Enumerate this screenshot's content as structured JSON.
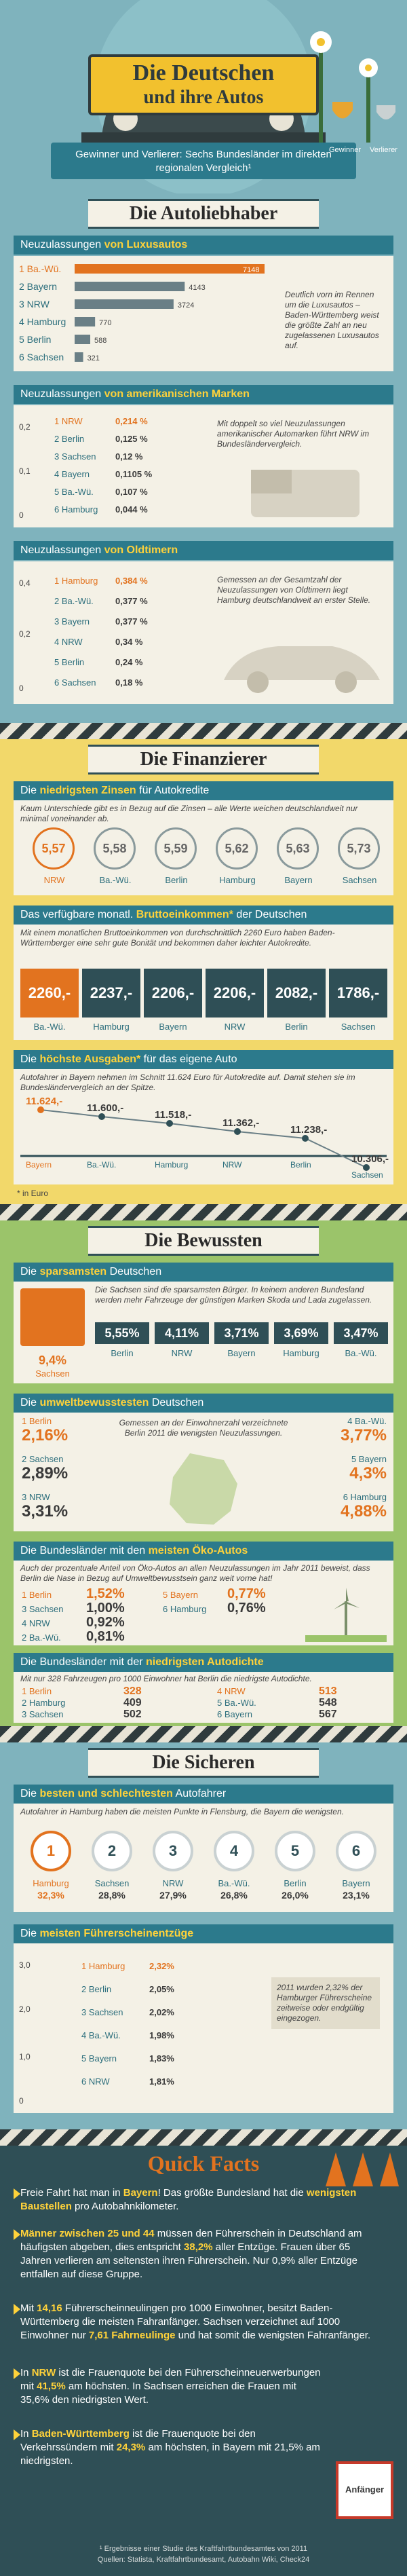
{
  "header": {
    "title1": "Die Deutschen",
    "title2": "und ihre Autos",
    "subtitle": "Gewinner und Verlierer: Sechs Bundesländer im direkten regionalen Vergleich¹",
    "winner": "Gewinner",
    "loser": "Verlierer"
  },
  "s1": {
    "title": "Die Autoliebhaber",
    "lux": {
      "heading_pre": "Neuzulassungen ",
      "heading_bold": "von Luxusautos",
      "note": "Deutlich vorn im Rennen um die Luxusautos – Baden-Württemberg weist die größte Zahl an neu zugelassenen Luxusautos auf.",
      "rows": [
        {
          "label": "1 Ba.-Wü.",
          "value": "7148",
          "v": 7148
        },
        {
          "label": "2 Bayern",
          "value": "4143",
          "v": 4143
        },
        {
          "label": "3 NRW",
          "value": "3724",
          "v": 3724
        },
        {
          "label": "4 Hamburg",
          "value": "770",
          "v": 770
        },
        {
          "label": "5 Berlin",
          "value": "588",
          "v": 588
        },
        {
          "label": "6 Sachsen",
          "value": "321",
          "v": 321
        }
      ]
    },
    "us": {
      "heading_pre": "Neuzulassungen ",
      "heading_bold": "von amerikanischen Marken",
      "note": "Mit doppelt so viel Neuzulassungen amerikanischer Automarken führt NRW im Bundesländervergleich.",
      "axis_top": "0,2",
      "axis_mid": "0,1",
      "axis_bot": "0",
      "rows": [
        {
          "label": "1 NRW",
          "value": "0,214 %"
        },
        {
          "label": "2 Berlin",
          "value": "0,125 %"
        },
        {
          "label": "3 Sachsen",
          "value": "0,12 %"
        },
        {
          "label": "4 Bayern",
          "value": "0,1105 %"
        },
        {
          "label": "5 Ba.-Wü.",
          "value": "0,107 %"
        },
        {
          "label": "6 Hamburg",
          "value": "0,044 %"
        }
      ]
    },
    "old": {
      "heading_pre": "Neuzulassungen ",
      "heading_bold": "von Oldtimern",
      "note": "Gemessen an der Gesamtzahl der Neuzulassungen von Oldtimern liegt Hamburg deutschlandweit an erster Stelle.",
      "axis_top": "0,4",
      "axis_mid": "0,2",
      "axis_bot": "0",
      "rows": [
        {
          "label": "1 Hamburg",
          "value": "0,384 %"
        },
        {
          "label": "2 Ba.-Wü.",
          "value": "0,377 %"
        },
        {
          "label": "3 Bayern",
          "value": "0,377 %"
        },
        {
          "label": "4 NRW",
          "value": "0,34 %"
        },
        {
          "label": "5 Berlin",
          "value": "0,24 %"
        },
        {
          "label": "6 Sachsen",
          "value": "0,18 %"
        }
      ]
    }
  },
  "s2": {
    "title": "Die Finanzierer",
    "zins": {
      "heading_pre": "Die ",
      "heading_bold": "niedrigsten Zinsen",
      "heading_post": " für Autokredite",
      "note": "Kaum Unterschiede gibt es in Bezug auf die Zinsen – alle Werte weichen deutschlandweit nur minimal voneinander ab.",
      "items": [
        {
          "value": "5,57",
          "label": "NRW"
        },
        {
          "value": "5,58",
          "label": "Ba.-Wü."
        },
        {
          "value": "5,59",
          "label": "Berlin"
        },
        {
          "value": "5,62",
          "label": "Hamburg"
        },
        {
          "value": "5,63",
          "label": "Bayern"
        },
        {
          "value": "5,73",
          "label": "Sachsen"
        }
      ]
    },
    "brutto": {
      "heading_pre": "Das verfügbare monatl. ",
      "heading_bold": "Bruttoeinkommen*",
      "heading_post": " der Deutschen",
      "note": "Mit einem monatlichen Bruttoeinkommen von durchschnittlich 2260 Euro haben Baden-Württemberger eine sehr gute Bonität und bekommen daher leichter Autokredite.",
      "items": [
        {
          "value": "2260,-",
          "label": "Ba.-Wü."
        },
        {
          "value": "2237,-",
          "label": "Hamburg"
        },
        {
          "value": "2206,-",
          "label": "Bayern"
        },
        {
          "value": "2206,-",
          "label": "NRW"
        },
        {
          "value": "2082,-",
          "label": "Berlin"
        },
        {
          "value": "1786,-",
          "label": "Sachsen"
        }
      ]
    },
    "ausgaben": {
      "heading_pre": "Die ",
      "heading_bold": "höchste Ausgaben*",
      "heading_post": " für das eigene Auto",
      "note": "Autofahrer in Bayern nehmen im Schnitt 11.624 Euro für Autokredite auf. Damit stehen sie im Bundesländervergleich an der Spitze.",
      "items": [
        {
          "value": "11.624,-",
          "label": "Bayern"
        },
        {
          "value": "11.600,-",
          "label": "Ba.-Wü."
        },
        {
          "value": "11.518,-",
          "label": "Hamburg"
        },
        {
          "value": "11.362,-",
          "label": "NRW"
        },
        {
          "value": "11.238,-",
          "label": "Berlin"
        },
        {
          "value": "10.306,-",
          "label": "Sachsen"
        }
      ]
    },
    "footnote": "* in Euro"
  },
  "s3": {
    "title": "Die Bewussten",
    "spar": {
      "heading_pre": "Die ",
      "heading_bold": "sparsamsten",
      "heading_post": " Deutschen",
      "note": "Die Sachsen sind die sparsamsten Bürger. In keinem anderen Bundesland werden mehr Fahrzeuge der günstigen Marken Skoda und Lada zugelassen.",
      "items": [
        {
          "value": "9,4%",
          "label": "Sachsen"
        },
        {
          "value": "5,55%",
          "label": "Berlin"
        },
        {
          "value": "4,11%",
          "label": "NRW"
        },
        {
          "value": "3,71%",
          "label": "Bayern"
        },
        {
          "value": "3,69%",
          "label": "Hamburg"
        },
        {
          "value": "3,47%",
          "label": "Ba.-Wü."
        }
      ]
    },
    "umwelt": {
      "heading_pre": "Die ",
      "heading_bold": "umweltbewusstesten",
      "heading_post": " Deutschen",
      "note": "Gemessen an der Einwohnerzahl verzeichnete Berlin 2011 die wenigsten Neuzulassungen.",
      "left": [
        {
          "label": "1 Berlin",
          "value": "2,16%"
        },
        {
          "label": "2 Sachsen",
          "value": "2,89%"
        },
        {
          "label": "3 NRW",
          "value": "3,31%"
        }
      ],
      "right": [
        {
          "label": "4 Ba.-Wü.",
          "value": "3,77%"
        },
        {
          "label": "5 Bayern",
          "value": "4,3%"
        },
        {
          "label": "6 Hamburg",
          "value": "4,88%"
        }
      ]
    },
    "oeko": {
      "heading_pre": "Die Bundesländer mit den ",
      "heading_bold": "meisten Öko-Autos",
      "note": "Auch der prozentuale Anteil von Öko-Autos an allen Neuzulassungen im Jahr 2011 beweist, dass Berlin die Nase in Bezug auf Umweltbewusstsein ganz weit vorne hat!",
      "left": [
        {
          "label": "1 Berlin",
          "value": "1,52%"
        },
        {
          "label": "3 Sachsen",
          "value": "1,00%"
        },
        {
          "label": "4 NRW",
          "value": "0,92%"
        },
        {
          "label": "2 Ba.-Wü.",
          "value": "0,81%"
        }
      ],
      "right": [
        {
          "label": "5 Bayern",
          "value": "0,77%"
        },
        {
          "label": "6 Hamburg",
          "value": "0,76%"
        }
      ]
    },
    "dichte": {
      "heading_pre": "Die Bundesländer mit der ",
      "heading_bold": "niedrigsten Autodichte",
      "note": "Mit nur 328 Fahrzeugen pro 1000 Einwohner hat Berlin die niedrigste Autodichte.",
      "left": [
        {
          "label": "1 Berlin",
          "value": "328"
        },
        {
          "label": "2 Hamburg",
          "value": "409"
        },
        {
          "label": "3 Sachsen",
          "value": "502"
        }
      ],
      "right": [
        {
          "label": "4 NRW",
          "value": "513"
        },
        {
          "label": "5 Ba.-Wü.",
          "value": "548"
        },
        {
          "label": "6 Bayern",
          "value": "567"
        }
      ]
    }
  },
  "s4": {
    "title": "Die Sicheren",
    "fahrer": {
      "heading_pre": "Die ",
      "heading_bold": "besten und schlechtesten",
      "heading_post": " Autofahrer",
      "note": "Autofahrer in Hamburg haben die meisten Punkte in Flensburg, die Bayern die wenigsten.",
      "items": [
        {
          "rank": "1",
          "label": "Hamburg",
          "value": "32,3%"
        },
        {
          "rank": "2",
          "label": "Sachsen",
          "value": "28,8%"
        },
        {
          "rank": "3",
          "label": "NRW",
          "value": "27,9%"
        },
        {
          "rank": "4",
          "label": "Ba.-Wü.",
          "value": "26,8%"
        },
        {
          "rank": "5",
          "label": "Berlin",
          "value": "26,0%"
        },
        {
          "rank": "6",
          "label": "Bayern",
          "value": "23,1%"
        }
      ]
    },
    "schein": {
      "heading_pre": "Die ",
      "heading_bold": "meisten Führerscheinentzüge",
      "note": "2011 wurden 2,32% der Hamburger Führerscheine zeitweise oder endgültig eingezogen.",
      "axis_top": "3,0",
      "axis_mid": "2,0",
      "axis_low": "1,0",
      "axis_bot": "0",
      "rows": [
        {
          "label": "1 Hamburg",
          "value": "2,32%"
        },
        {
          "label": "2 Berlin",
          "value": "2,05%"
        },
        {
          "label": "3 Sachsen",
          "value": "2,02%"
        },
        {
          "label": "4 Ba.-Wü.",
          "value": "1,98%"
        },
        {
          "label": "5 Bayern",
          "value": "1,83%"
        },
        {
          "label": "6 NRW",
          "value": "1,81%"
        }
      ]
    }
  },
  "quick": {
    "title": "Quick Facts",
    "badge": "Anfänger",
    "facts": [
      {
        "pre": "Freie Fahrt hat man in ",
        "b1": "Bayern",
        "mid": "! Das größte Bundesland hat die ",
        "b2": "wenigsten Baustellen",
        "post": " pro Autobahnkilometer."
      },
      {
        "pre": "",
        "b1": "Männer zwischen 25 und 44",
        "mid": " müssen den Führerschein in Deutschland am häufigsten abgeben, dies entspricht ",
        "b2": "38,2%",
        "post": " aller Entzüge. Frauen über 65 Jahren verlieren am seltensten ihren Führerschein. Nur 0,9% aller Entzüge entfallen auf diese Gruppe."
      },
      {
        "pre": "Mit ",
        "b1": "14,16",
        "mid": " Führerscheinneulingen pro 1000 Einwohner, besitzt Baden-Württemberg die meisten Fahranfänger. Sachsen verzeichnet auf 1000 Einwohner nur ",
        "b2": "7,61 Fahrneulinge",
        "post": " und hat somit die wenigsten Fahranfänger."
      },
      {
        "pre": "In ",
        "b1": "NRW",
        "mid": " ist die Frauenquote bei den Führerscheinneuerwerbungen mit ",
        "b2": "41,5%",
        "post": " am höchsten. In Sachsen erreichen die Frauen mit 35,6% den niedrigsten Wert."
      },
      {
        "pre": "In ",
        "b1": "Baden-Württemberg",
        "mid": " ist die Frauenquote bei den Verkehrssündern mit ",
        "b2": "24,3%",
        "post": " am höchsten, in Bayern mit 21,5% am niedrigsten."
      }
    ]
  },
  "footer": {
    "line1": "¹ Ergebnisse einer Studie des Kraftfahrtbundesamtes von 2011",
    "line2": "Quellen: Statista, Kraftfahrtbundesamt, Autobahn Wiki, Check24"
  }
}
